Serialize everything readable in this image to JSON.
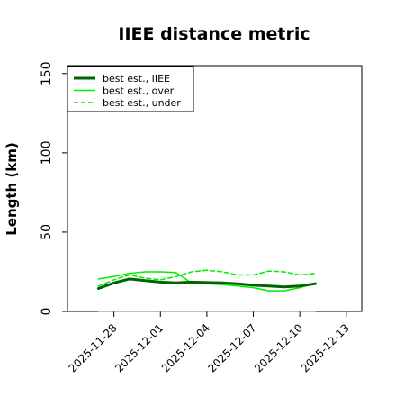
{
  "chart_data": {
    "type": "line",
    "title": "IIEE distance metric",
    "xlabel": "",
    "ylabel": "Length (km)",
    "ylim": [
      0,
      155
    ],
    "xlim": [
      "2025-11-25",
      "2025-12-14"
    ],
    "y_ticks": [
      0,
      50,
      100,
      150
    ],
    "x_ticks": [
      "2025-11-28",
      "2025-12-01",
      "2025-12-04",
      "2025-12-07",
      "2025-12-10",
      "2025-12-13"
    ],
    "grid": false,
    "legend_position": "top-left",
    "x": [
      "2025-11-27",
      "2025-11-28",
      "2025-11-29",
      "2025-11-30",
      "2025-12-01",
      "2025-12-02",
      "2025-12-03",
      "2025-12-04",
      "2025-12-05",
      "2025-12-06",
      "2025-12-07",
      "2025-12-08",
      "2025-12-09",
      "2025-12-10",
      "2025-12-11"
    ],
    "series": [
      {
        "name": "best est., IIEE",
        "color": "#006400",
        "style": "solid-thick",
        "values": [
          14.5,
          18,
          20.5,
          19.5,
          18.5,
          18,
          18.5,
          18.2,
          18,
          17.5,
          16.5,
          16,
          15.5,
          16,
          17.5
        ]
      },
      {
        "name": "best est., over",
        "color": "#00ee00",
        "style": "solid",
        "values": [
          20.5,
          22,
          24,
          25,
          25,
          24.5,
          18,
          17.5,
          17,
          16,
          15,
          13,
          13,
          15,
          18
        ]
      },
      {
        "name": "best est., under",
        "color": "#00ee00",
        "style": "dashed",
        "values": [
          16,
          20,
          23,
          21,
          20,
          22,
          25,
          26,
          25,
          23,
          23,
          25.5,
          25,
          23,
          24
        ]
      },
      {
        "name": "",
        "color": "#808080",
        "style": "solid-thin",
        "values": [
          0,
          0,
          0,
          0,
          0,
          0,
          0,
          0,
          0,
          0,
          0,
          0,
          0,
          0,
          0
        ]
      }
    ]
  }
}
